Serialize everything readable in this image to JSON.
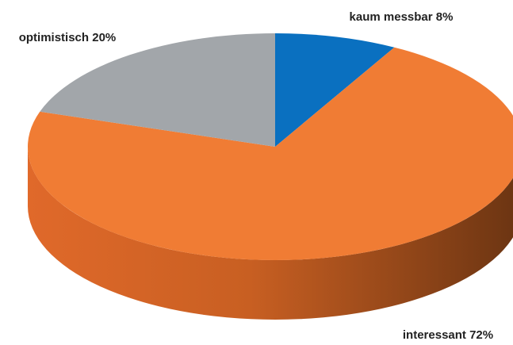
{
  "chart_data": {
    "type": "pie",
    "categories": [
      "kaum messbar",
      "interessant",
      "optimistisch"
    ],
    "values": [
      8,
      72,
      20
    ],
    "value_labels": [
      "8%",
      "72%",
      "20%"
    ],
    "colors": [
      "#0a70c0",
      "#f07c34",
      "#a2a6aa"
    ]
  }
}
